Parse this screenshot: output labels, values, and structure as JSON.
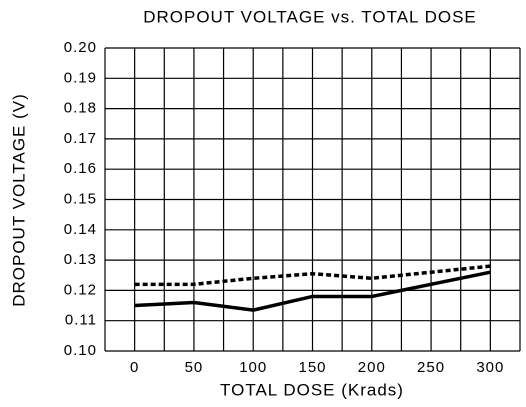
{
  "chart_data": {
    "type": "line",
    "title": "DROPOUT VOLTAGE vs. TOTAL DOSE",
    "x_label": "TOTAL DOSE (Krads)",
    "y_label": "DROPOUT VOLTAGE (V)",
    "x": [
      0,
      50,
      100,
      150,
      200,
      250,
      300
    ],
    "series": [
      {
        "color": "#000000",
        "dash": "solid",
        "values": [
          0.115,
          0.116,
          0.1135,
          0.118,
          0.118,
          0.122,
          0.126
        ]
      },
      {
        "color": "#000000",
        "dash": "dashed",
        "values": [
          0.122,
          0.122,
          0.124,
          0.1255,
          0.124,
          0.126,
          0.128
        ]
      }
    ],
    "xlim": [
      -25,
      325
    ],
    "xticks": [
      0,
      50,
      100,
      150,
      200,
      250,
      300
    ],
    "xgrid": [
      -25,
      0,
      25,
      50,
      75,
      100,
      125,
      150,
      175,
      200,
      225,
      250,
      275,
      300,
      325
    ],
    "ylim": [
      0.1,
      0.2
    ],
    "yticks": [
      {
        "value": 0.1,
        "label": "0.10"
      },
      {
        "value": 0.11,
        "label": "0.11"
      },
      {
        "value": 0.12,
        "label": "0.12"
      },
      {
        "value": 0.13,
        "label": "0.13"
      },
      {
        "value": 0.14,
        "label": "0.14"
      },
      {
        "value": 0.15,
        "label": "0.15"
      },
      {
        "value": 0.16,
        "label": "0.16"
      },
      {
        "value": 0.17,
        "label": "0.17"
      },
      {
        "value": 0.18,
        "label": "0.18"
      },
      {
        "value": 0.19,
        "label": "0.19"
      },
      {
        "value": 0.2,
        "label": "0.20"
      }
    ],
    "grid": true
  }
}
